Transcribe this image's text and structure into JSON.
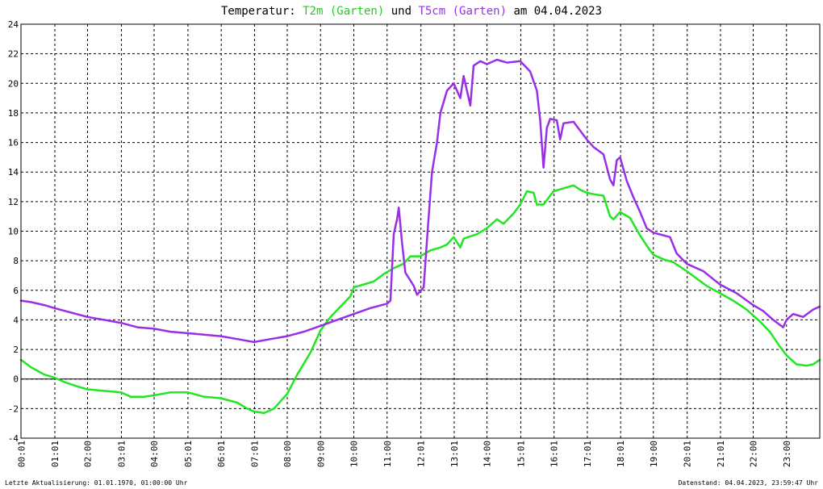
{
  "title": {
    "prefix": "Temperatur: ",
    "series1": "T2m (Garten)",
    "middle": " und ",
    "series2": "T5cm (Garten)",
    "suffix": " am 04.04.2023"
  },
  "footer": {
    "left": "Letzte Aktualisierung: 01.01.1970, 01:00:00 Uhr",
    "right": "Datenstand: 04.04.2023, 23:59:47 Uhr"
  },
  "chart_data": {
    "type": "line",
    "title": "Temperatur: T2m (Garten) und T5cm (Garten) am 04.04.2023",
    "xlabel": "",
    "ylabel": "",
    "xlim": [
      0,
      24
    ],
    "ylim": [
      -4,
      24
    ],
    "grid": true,
    "y_ticks": [
      "-4",
      "-2",
      "0",
      "2",
      "4",
      "6",
      "8",
      "10",
      "12",
      "14",
      "16",
      "18",
      "20",
      "22",
      "24"
    ],
    "x_ticks": [
      {
        "t": 0.0167,
        "label": "00:01"
      },
      {
        "t": 1.0167,
        "label": "01:01"
      },
      {
        "t": 2.0,
        "label": "02:00"
      },
      {
        "t": 3.0167,
        "label": "03:01"
      },
      {
        "t": 4.0,
        "label": "04:00"
      },
      {
        "t": 5.0167,
        "label": "05:01"
      },
      {
        "t": 6.0167,
        "label": "06:01"
      },
      {
        "t": 7.0167,
        "label": "07:01"
      },
      {
        "t": 8.0,
        "label": "08:00"
      },
      {
        "t": 9.0,
        "label": "09:00"
      },
      {
        "t": 10.0,
        "label": "10:00"
      },
      {
        "t": 11.0,
        "label": "11:00"
      },
      {
        "t": 12.0167,
        "label": "12:01"
      },
      {
        "t": 13.0167,
        "label": "13:01"
      },
      {
        "t": 14.0,
        "label": "14:00"
      },
      {
        "t": 15.0167,
        "label": "15:01"
      },
      {
        "t": 16.0167,
        "label": "16:01"
      },
      {
        "t": 17.0167,
        "label": "17:01"
      },
      {
        "t": 18.0167,
        "label": "18:01"
      },
      {
        "t": 19.0,
        "label": "19:00"
      },
      {
        "t": 20.0167,
        "label": "20:01"
      },
      {
        "t": 21.0167,
        "label": "21:01"
      },
      {
        "t": 22.0,
        "label": "22:00"
      },
      {
        "t": 23.0,
        "label": "23:00"
      }
    ],
    "series": [
      {
        "name": "T2m (Garten)",
        "color": "#22e622",
        "points": [
          [
            0.0,
            1.3
          ],
          [
            0.3,
            0.8
          ],
          [
            0.7,
            0.3
          ],
          [
            1.0,
            0.1
          ],
          [
            1.3,
            -0.2
          ],
          [
            1.7,
            -0.5
          ],
          [
            2.0,
            -0.7
          ],
          [
            2.5,
            -0.8
          ],
          [
            3.0,
            -0.9
          ],
          [
            3.3,
            -1.2
          ],
          [
            3.7,
            -1.2
          ],
          [
            4.0,
            -1.1
          ],
          [
            4.5,
            -0.9
          ],
          [
            5.0,
            -0.9
          ],
          [
            5.5,
            -1.2
          ],
          [
            6.0,
            -1.3
          ],
          [
            6.5,
            -1.6
          ],
          [
            6.8,
            -2.0
          ],
          [
            7.0,
            -2.2
          ],
          [
            7.3,
            -2.3
          ],
          [
            7.6,
            -2.0
          ],
          [
            8.0,
            -1.0
          ],
          [
            8.3,
            0.3
          ],
          [
            8.7,
            1.8
          ],
          [
            9.0,
            3.3
          ],
          [
            9.3,
            4.2
          ],
          [
            9.6,
            4.9
          ],
          [
            9.9,
            5.6
          ],
          [
            10.0,
            6.2
          ],
          [
            10.3,
            6.4
          ],
          [
            10.6,
            6.6
          ],
          [
            10.9,
            7.1
          ],
          [
            11.2,
            7.5
          ],
          [
            11.5,
            7.8
          ],
          [
            11.7,
            8.3
          ],
          [
            12.0,
            8.3
          ],
          [
            12.3,
            8.7
          ],
          [
            12.6,
            8.9
          ],
          [
            12.8,
            9.1
          ],
          [
            13.0,
            9.6
          ],
          [
            13.2,
            8.9
          ],
          [
            13.3,
            9.5
          ],
          [
            13.7,
            9.8
          ],
          [
            14.0,
            10.2
          ],
          [
            14.3,
            10.8
          ],
          [
            14.5,
            10.5
          ],
          [
            14.8,
            11.2
          ],
          [
            15.0,
            11.8
          ],
          [
            15.2,
            12.7
          ],
          [
            15.4,
            12.6
          ],
          [
            15.5,
            11.8
          ],
          [
            15.7,
            11.8
          ],
          [
            16.0,
            12.7
          ],
          [
            16.3,
            12.9
          ],
          [
            16.6,
            13.1
          ],
          [
            16.8,
            12.8
          ],
          [
            17.0,
            12.6
          ],
          [
            17.2,
            12.5
          ],
          [
            17.5,
            12.4
          ],
          [
            17.7,
            11.0
          ],
          [
            17.8,
            10.8
          ],
          [
            18.0,
            11.3
          ],
          [
            18.3,
            10.9
          ],
          [
            18.6,
            9.7
          ],
          [
            18.9,
            8.7
          ],
          [
            19.0,
            8.4
          ],
          [
            19.3,
            8.1
          ],
          [
            19.6,
            7.9
          ],
          [
            20.0,
            7.3
          ],
          [
            20.3,
            6.8
          ],
          [
            20.6,
            6.3
          ],
          [
            21.0,
            5.8
          ],
          [
            21.4,
            5.3
          ],
          [
            21.8,
            4.7
          ],
          [
            22.2,
            3.9
          ],
          [
            22.5,
            3.2
          ],
          [
            22.8,
            2.2
          ],
          [
            23.0,
            1.6
          ],
          [
            23.3,
            1.0
          ],
          [
            23.6,
            0.9
          ],
          [
            23.8,
            1.0
          ],
          [
            24.0,
            1.3
          ]
        ]
      },
      {
        "name": "T5cm (Garten)",
        "color": "#9a2ee6",
        "points": [
          [
            0.0,
            5.3
          ],
          [
            0.3,
            5.2
          ],
          [
            0.7,
            5.0
          ],
          [
            1.0,
            4.8
          ],
          [
            1.5,
            4.5
          ],
          [
            2.0,
            4.2
          ],
          [
            2.5,
            4.0
          ],
          [
            3.0,
            3.8
          ],
          [
            3.5,
            3.5
          ],
          [
            4.0,
            3.4
          ],
          [
            4.5,
            3.2
          ],
          [
            5.0,
            3.1
          ],
          [
            5.5,
            3.0
          ],
          [
            6.0,
            2.9
          ],
          [
            6.5,
            2.7
          ],
          [
            7.0,
            2.5
          ],
          [
            7.5,
            2.7
          ],
          [
            8.0,
            2.9
          ],
          [
            8.5,
            3.2
          ],
          [
            9.0,
            3.6
          ],
          [
            9.5,
            4.0
          ],
          [
            10.0,
            4.4
          ],
          [
            10.5,
            4.8
          ],
          [
            11.0,
            5.1
          ],
          [
            11.1,
            5.3
          ],
          [
            11.2,
            9.8
          ],
          [
            11.3,
            10.8
          ],
          [
            11.35,
            11.6
          ],
          [
            11.45,
            9.2
          ],
          [
            11.55,
            7.2
          ],
          [
            11.8,
            6.3
          ],
          [
            11.9,
            5.7
          ],
          [
            12.1,
            6.2
          ],
          [
            12.2,
            9.5
          ],
          [
            12.35,
            14.0
          ],
          [
            12.5,
            16.0
          ],
          [
            12.6,
            18.0
          ],
          [
            12.8,
            19.5
          ],
          [
            13.0,
            20.0
          ],
          [
            13.2,
            19.0
          ],
          [
            13.3,
            20.5
          ],
          [
            13.5,
            18.5
          ],
          [
            13.6,
            21.2
          ],
          [
            13.8,
            21.5
          ],
          [
            14.0,
            21.3
          ],
          [
            14.3,
            21.6
          ],
          [
            14.6,
            21.4
          ],
          [
            15.0,
            21.5
          ],
          [
            15.3,
            20.8
          ],
          [
            15.5,
            19.5
          ],
          [
            15.6,
            17.5
          ],
          [
            15.7,
            14.3
          ],
          [
            15.8,
            17.0
          ],
          [
            15.9,
            17.6
          ],
          [
            16.1,
            17.5
          ],
          [
            16.2,
            16.2
          ],
          [
            16.3,
            17.3
          ],
          [
            16.6,
            17.4
          ],
          [
            16.8,
            16.8
          ],
          [
            17.0,
            16.2
          ],
          [
            17.2,
            15.7
          ],
          [
            17.5,
            15.2
          ],
          [
            17.7,
            13.5
          ],
          [
            17.8,
            13.1
          ],
          [
            17.9,
            14.8
          ],
          [
            18.0,
            15.0
          ],
          [
            18.2,
            13.4
          ],
          [
            18.4,
            12.3
          ],
          [
            18.6,
            11.3
          ],
          [
            18.8,
            10.2
          ],
          [
            19.0,
            9.9
          ],
          [
            19.5,
            9.6
          ],
          [
            19.7,
            8.5
          ],
          [
            20.0,
            7.8
          ],
          [
            20.5,
            7.3
          ],
          [
            21.0,
            6.4
          ],
          [
            21.5,
            5.8
          ],
          [
            22.0,
            5.0
          ],
          [
            22.3,
            4.6
          ],
          [
            22.6,
            4.0
          ],
          [
            22.9,
            3.5
          ],
          [
            23.0,
            4.0
          ],
          [
            23.2,
            4.4
          ],
          [
            23.5,
            4.2
          ],
          [
            23.8,
            4.7
          ],
          [
            24.0,
            4.9
          ]
        ]
      }
    ]
  }
}
